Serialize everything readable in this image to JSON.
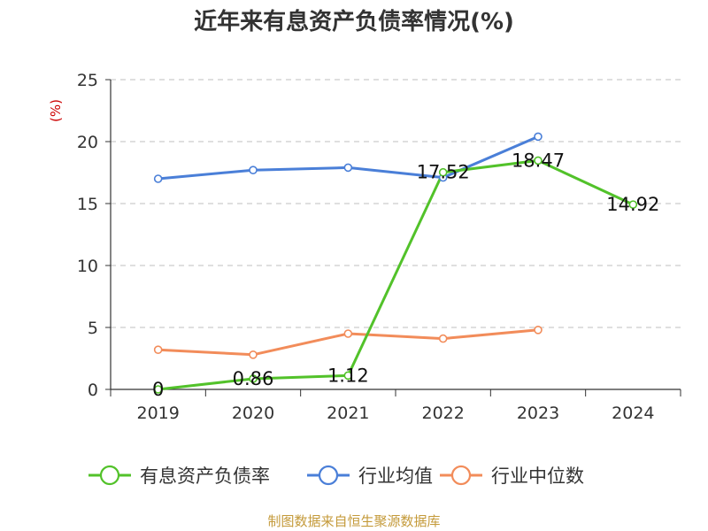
{
  "title": "近年来有息资产负债率情况(%)",
  "source": "制图数据来自恒生聚源数据库",
  "chart_data": {
    "type": "line",
    "title": "近年来有息资产负债率情况(%)",
    "ylabel": "(%)",
    "xlabel": "",
    "categories": [
      "2019",
      "2020",
      "2021",
      "2022",
      "2023",
      "2024"
    ],
    "ylim": [
      0,
      25
    ],
    "yticks": [
      0,
      5,
      10,
      15,
      20,
      25
    ],
    "grid": true,
    "legend": "bottom",
    "series": [
      {
        "name": "有息资产负债率",
        "color": "#52c22a",
        "values": [
          0,
          0.86,
          1.12,
          17.52,
          18.47,
          14.92
        ],
        "labels": [
          "0",
          "0.86",
          "1.12",
          "17.52",
          "18.47",
          "14.92"
        ]
      },
      {
        "name": "行业均值",
        "color": "#4a7fd8",
        "values": [
          17.0,
          17.7,
          17.9,
          17.1,
          20.4,
          null
        ]
      },
      {
        "name": "行业中位数",
        "color": "#f28c5a",
        "values": [
          3.2,
          2.8,
          4.5,
          4.1,
          4.8,
          null
        ]
      }
    ]
  }
}
